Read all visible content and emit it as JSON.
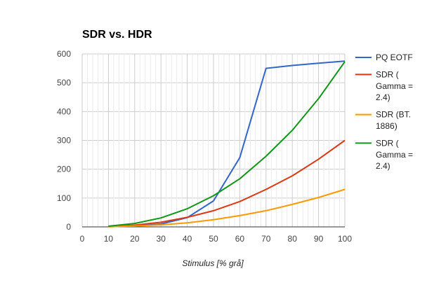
{
  "chart_data": {
    "type": "line",
    "title": "SDR vs. HDR",
    "xlabel": "Stimulus [% grå]",
    "ylabel": "",
    "x": [
      0,
      10,
      20,
      30,
      40,
      50,
      60,
      70,
      80,
      90,
      100
    ],
    "xlim": [
      0,
      100
    ],
    "ylim": [
      0,
      600
    ],
    "xticks": [
      "0",
      "10",
      "20",
      "30",
      "40",
      "50",
      "60",
      "70",
      "80",
      "90",
      "100"
    ],
    "yticks": [
      "0",
      "100",
      "200",
      "300",
      "400",
      "500",
      "600"
    ],
    "grid": true,
    "legend_position": "right",
    "series": [
      {
        "name": "PQ EOTF",
        "legend_lines": [
          "PQ EOTF"
        ],
        "color": "#3366cc",
        "values": [
          null,
          0.5,
          3,
          10,
          32,
          90,
          240,
          550,
          560,
          568,
          575
        ]
      },
      {
        "name": "SDR ( Gamma = 2.4)",
        "legend_lines": [
          "SDR (",
          "Gamma =",
          "2.4)"
        ],
        "color": "#dc3912",
        "values": [
          null,
          1.2,
          6,
          16,
          33,
          56,
          88,
          130,
          177,
          235,
          300
        ]
      },
      {
        "name": "SDR (BT. 1886)",
        "legend_lines": [
          "SDR (BT.",
          "1886)"
        ],
        "color": "#ff9900",
        "values": [
          null,
          0.5,
          3,
          7,
          14,
          25,
          39,
          56,
          78,
          102,
          130
        ]
      },
      {
        "name": "SDR ( Gamma = 2.4)",
        "legend_lines": [
          "SDR (",
          "Gamma =",
          "2.4)"
        ],
        "color": "#109618",
        "values": [
          null,
          2.5,
          12,
          31,
          63,
          108,
          167,
          245,
          335,
          445,
          573
        ]
      }
    ]
  }
}
